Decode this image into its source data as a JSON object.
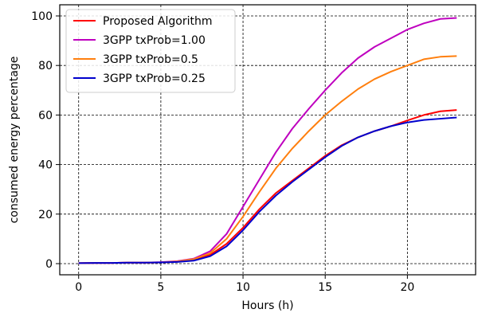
{
  "chart_data": {
    "type": "line",
    "title": "",
    "xlabel": "Hours (h)",
    "ylabel": "consumed energy percentage",
    "xlim": [
      -1.15,
      24.15
    ],
    "ylim": [
      -4.5,
      104.5
    ],
    "xticks": [
      0,
      5,
      10,
      15,
      20
    ],
    "yticks": [
      0,
      20,
      40,
      60,
      80,
      100
    ],
    "xtick_labels": [
      "0",
      "5",
      "10",
      "15",
      "20"
    ],
    "ytick_labels": [
      "0",
      "20",
      "40",
      "60",
      "80",
      "100"
    ],
    "grid": true,
    "legend_position": "upper-left",
    "x": [
      0,
      1,
      2,
      3,
      4,
      5,
      6,
      7,
      8,
      9,
      10,
      11,
      12,
      13,
      14,
      15,
      16,
      17,
      18,
      19,
      20,
      21,
      22,
      23
    ],
    "series": [
      {
        "name": "Proposed Algorithm",
        "color": "#ff0000",
        "values": [
          0.2,
          0.3,
          0.3,
          0.4,
          0.4,
          0.5,
          0.8,
          1.5,
          3.5,
          8.0,
          14.5,
          22.0,
          28.5,
          33.5,
          38.5,
          43.5,
          47.8,
          51.0,
          53.5,
          55.5,
          57.8,
          60.0,
          61.5,
          62.0
        ]
      },
      {
        "name": "3GPP txProb=1.00",
        "color": "#bf00bf",
        "values": [
          0.2,
          0.3,
          0.3,
          0.4,
          0.4,
          0.6,
          1.0,
          2.0,
          5.0,
          12.0,
          23.0,
          34.0,
          45.0,
          54.5,
          62.5,
          70.0,
          77.0,
          83.0,
          87.5,
          91.0,
          94.5,
          97.0,
          98.8,
          99.2
        ]
      },
      {
        "name": "3GPP txProb=0.5",
        "color": "#ff7f0e",
        "values": [
          0.2,
          0.3,
          0.3,
          0.4,
          0.4,
          0.5,
          0.9,
          1.8,
          4.2,
          10.0,
          19.0,
          29.0,
          38.5,
          46.5,
          53.5,
          60.0,
          65.5,
          70.5,
          74.5,
          77.5,
          80.0,
          82.5,
          83.5,
          83.8
        ]
      },
      {
        "name": "3GPP txProb=0.25",
        "color": "#0000cd",
        "values": [
          0.2,
          0.3,
          0.3,
          0.4,
          0.4,
          0.5,
          0.7,
          1.2,
          3.0,
          7.0,
          13.5,
          21.0,
          27.5,
          33.0,
          38.0,
          43.0,
          47.5,
          51.0,
          53.5,
          55.5,
          57.0,
          58.0,
          58.5,
          59.0
        ]
      }
    ]
  }
}
